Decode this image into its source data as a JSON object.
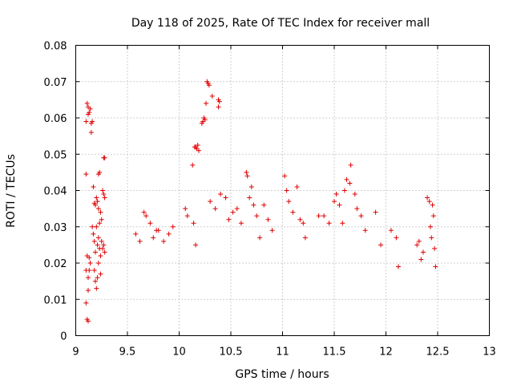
{
  "chart_data": {
    "type": "scatter",
    "title": "Day 118 of 2025, Rate Of TEC Index for receiver mall",
    "xlabel": "GPS time / hours",
    "ylabel": "ROTI / TECUs",
    "xlim": [
      9,
      13
    ],
    "ylim": [
      0,
      0.08
    ],
    "xticks": [
      9,
      9.5,
      10,
      10.5,
      11,
      11.5,
      12,
      12.5,
      13
    ],
    "xtick_labels": [
      "9",
      "9.5",
      "10",
      "10.5",
      "11",
      "11.5",
      "12",
      "12.5",
      "13"
    ],
    "yticks": [
      0,
      0.01,
      0.02,
      0.03,
      0.04,
      0.05,
      0.06,
      0.07,
      0.08
    ],
    "ytick_labels": [
      "0",
      "0.01",
      "0.02",
      "0.03",
      "0.04",
      "0.05",
      "0.06",
      "0.07",
      "0.08"
    ],
    "grid": true,
    "marker": "+",
    "color": "#e00000",
    "series": [
      {
        "name": "ROTI",
        "points": [
          [
            9.1,
            0.0445
          ],
          [
            9.1,
            0.059
          ],
          [
            9.11,
            0.064
          ],
          [
            9.12,
            0.063
          ],
          [
            9.12,
            0.061
          ],
          [
            9.13,
            0.0615
          ],
          [
            9.14,
            0.0625
          ],
          [
            9.15,
            0.0585
          ],
          [
            9.16,
            0.059
          ],
          [
            9.15,
            0.056
          ],
          [
            9.22,
            0.0445
          ],
          [
            9.23,
            0.045
          ],
          [
            9.27,
            0.049
          ],
          [
            9.28,
            0.049
          ],
          [
            9.1,
            0.018
          ],
          [
            9.11,
            0.022
          ],
          [
            9.12,
            0.0125
          ],
          [
            9.13,
            0.0215
          ],
          [
            9.1,
            0.009
          ],
          [
            9.11,
            0.0045
          ],
          [
            9.12,
            0.004
          ],
          [
            9.14,
            0.02
          ],
          [
            9.12,
            0.016
          ],
          [
            9.13,
            0.018
          ],
          [
            9.17,
            0.041
          ],
          [
            9.18,
            0.0365
          ],
          [
            9.19,
            0.036
          ],
          [
            9.2,
            0.038
          ],
          [
            9.21,
            0.037
          ],
          [
            9.22,
            0.035
          ],
          [
            9.23,
            0.031
          ],
          [
            9.24,
            0.034
          ],
          [
            9.25,
            0.032
          ],
          [
            9.26,
            0.04
          ],
          [
            9.27,
            0.039
          ],
          [
            9.28,
            0.038
          ],
          [
            9.16,
            0.03
          ],
          [
            9.17,
            0.028
          ],
          [
            9.18,
            0.026
          ],
          [
            9.19,
            0.023
          ],
          [
            9.2,
            0.03
          ],
          [
            9.21,
            0.025
          ],
          [
            9.22,
            0.027
          ],
          [
            9.23,
            0.024
          ],
          [
            9.24,
            0.022
          ],
          [
            9.25,
            0.026
          ],
          [
            9.26,
            0.024
          ],
          [
            9.27,
            0.025
          ],
          [
            9.28,
            0.023
          ],
          [
            9.18,
            0.018
          ],
          [
            9.19,
            0.015
          ],
          [
            9.2,
            0.013
          ],
          [
            9.21,
            0.016
          ],
          [
            9.22,
            0.02
          ],
          [
            9.24,
            0.017
          ],
          [
            9.58,
            0.028
          ],
          [
            9.62,
            0.026
          ],
          [
            9.66,
            0.034
          ],
          [
            9.68,
            0.033
          ],
          [
            9.72,
            0.031
          ],
          [
            9.75,
            0.027
          ],
          [
            9.78,
            0.029
          ],
          [
            9.8,
            0.029
          ],
          [
            9.85,
            0.026
          ],
          [
            9.9,
            0.028
          ],
          [
            9.94,
            0.03
          ],
          [
            10.14,
            0.031
          ],
          [
            10.16,
            0.025
          ],
          [
            10.13,
            0.047
          ],
          [
            10.15,
            0.052
          ],
          [
            10.16,
            0.052
          ],
          [
            10.17,
            0.0515
          ],
          [
            10.18,
            0.0525
          ],
          [
            10.19,
            0.051
          ],
          [
            10.22,
            0.0585
          ],
          [
            10.23,
            0.059
          ],
          [
            10.24,
            0.06
          ],
          [
            10.25,
            0.0595
          ],
          [
            10.26,
            0.064
          ],
          [
            10.27,
            0.07
          ],
          [
            10.28,
            0.0695
          ],
          [
            10.29,
            0.069
          ],
          [
            10.32,
            0.066
          ],
          [
            10.38,
            0.065
          ],
          [
            10.39,
            0.0645
          ],
          [
            10.38,
            0.063
          ],
          [
            10.06,
            0.035
          ],
          [
            10.08,
            0.033
          ],
          [
            10.3,
            0.037
          ],
          [
            10.35,
            0.035
          ],
          [
            10.4,
            0.039
          ],
          [
            10.45,
            0.038
          ],
          [
            10.48,
            0.032
          ],
          [
            10.52,
            0.034
          ],
          [
            10.56,
            0.035
          ],
          [
            10.6,
            0.031
          ],
          [
            10.65,
            0.045
          ],
          [
            10.66,
            0.044
          ],
          [
            10.68,
            0.038
          ],
          [
            10.7,
            0.041
          ],
          [
            10.72,
            0.036
          ],
          [
            10.75,
            0.033
          ],
          [
            10.78,
            0.027
          ],
          [
            10.82,
            0.036
          ],
          [
            10.86,
            0.032
          ],
          [
            10.9,
            0.029
          ],
          [
            11.02,
            0.044
          ],
          [
            11.04,
            0.04
          ],
          [
            11.06,
            0.037
          ],
          [
            11.1,
            0.034
          ],
          [
            11.14,
            0.041
          ],
          [
            11.17,
            0.032
          ],
          [
            11.2,
            0.031
          ],
          [
            11.22,
            0.027
          ],
          [
            11.35,
            0.033
          ],
          [
            11.4,
            0.033
          ],
          [
            11.45,
            0.031
          ],
          [
            11.5,
            0.037
          ],
          [
            11.52,
            0.039
          ],
          [
            11.55,
            0.036
          ],
          [
            11.58,
            0.031
          ],
          [
            11.6,
            0.04
          ],
          [
            11.62,
            0.043
          ],
          [
            11.65,
            0.042
          ],
          [
            11.66,
            0.047
          ],
          [
            11.7,
            0.039
          ],
          [
            11.72,
            0.035
          ],
          [
            11.76,
            0.033
          ],
          [
            11.8,
            0.029
          ],
          [
            11.9,
            0.034
          ],
          [
            11.95,
            0.025
          ],
          [
            12.05,
            0.029
          ],
          [
            12.1,
            0.027
          ],
          [
            12.12,
            0.019
          ],
          [
            12.4,
            0.038
          ],
          [
            12.42,
            0.037
          ],
          [
            12.45,
            0.036
          ],
          [
            12.46,
            0.033
          ],
          [
            12.43,
            0.03
          ],
          [
            12.44,
            0.027
          ],
          [
            12.47,
            0.024
          ],
          [
            12.48,
            0.019
          ],
          [
            12.32,
            0.026
          ],
          [
            12.34,
            0.021
          ],
          [
            12.3,
            0.025
          ],
          [
            12.36,
            0.023
          ]
        ]
      }
    ]
  }
}
